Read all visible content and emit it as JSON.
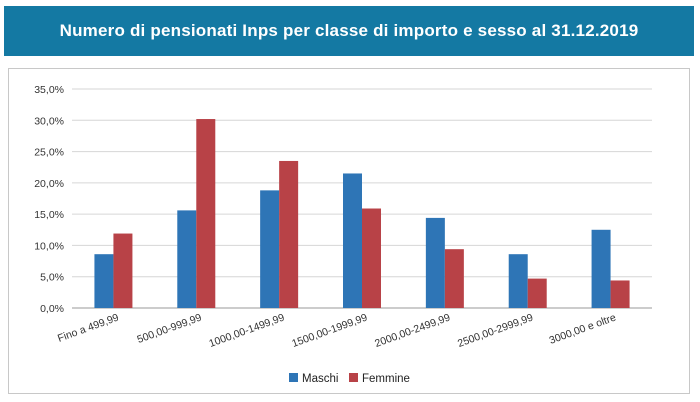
{
  "header": {
    "title": "Numero di pensionati Inps per classe di importo e sesso al 31.12.2019",
    "background_color": "#1479a3"
  },
  "chart_data": {
    "type": "bar",
    "title": "Numero di pensionati Inps per classe di importo e sesso al 31.12.2019",
    "xlabel": "",
    "ylabel": "",
    "categories": [
      "Fino a 499,99",
      "500,00-999,99",
      "1000,00-1499,99",
      "1500,00-1999,99",
      "2000,00-2499,99",
      "2500,00-2999,99",
      "3000,00 e oltre"
    ],
    "series": [
      {
        "name": "Maschi",
        "color": "#2e75b6",
        "values": [
          8.6,
          15.6,
          18.8,
          21.5,
          14.4,
          8.6,
          12.5
        ]
      },
      {
        "name": "Femmine",
        "color": "#b84247",
        "values": [
          11.9,
          30.2,
          23.5,
          15.9,
          9.4,
          4.7,
          4.4
        ]
      }
    ],
    "ylim": [
      0,
      35
    ],
    "yticks": [
      "0,0%",
      "5,0%",
      "10,0%",
      "15,0%",
      "20,0%",
      "25,0%",
      "30,0%",
      "35,0%"
    ],
    "grid": true,
    "legend_position": "bottom"
  }
}
